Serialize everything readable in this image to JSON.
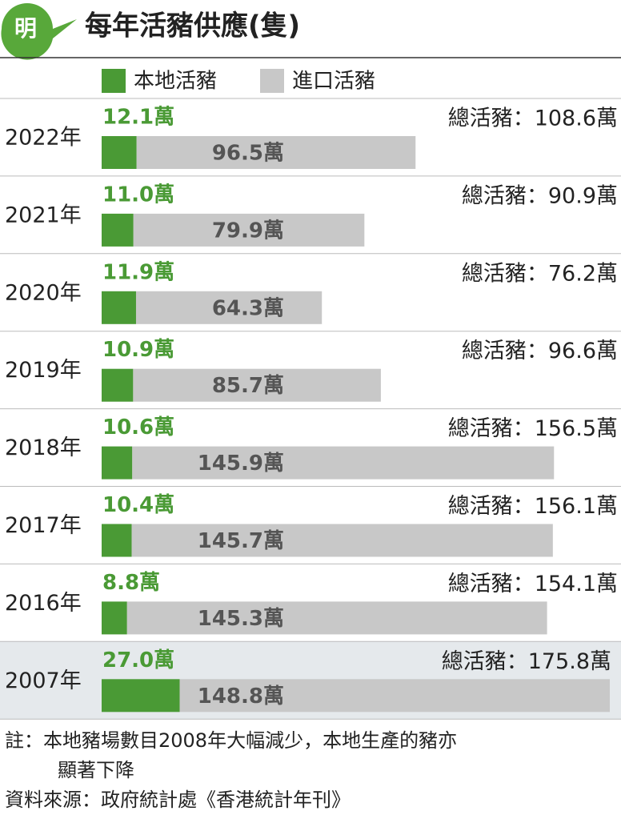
{
  "chart_data": {
    "type": "stacked-bar-horizontal",
    "logo": "明",
    "title": "每年活豬供應(隻)",
    "categories": [
      "2022年",
      "2021年",
      "2020年",
      "2019年",
      "2018年",
      "2017年",
      "2016年",
      "2007年"
    ],
    "series": [
      {
        "name": "本地活豬",
        "color": "#4a9a35",
        "values": [
          12.1,
          11.0,
          11.9,
          10.9,
          10.6,
          10.4,
          8.8,
          27.0
        ],
        "value_labels": [
          "12.1萬",
          "11.0萬",
          "11.9萬",
          "10.9萬",
          "10.6萬",
          "10.4萬",
          "8.8萬",
          "27.0萬"
        ]
      },
      {
        "name": "進口活豬",
        "color": "#c8c8c8",
        "values": [
          96.5,
          79.9,
          64.3,
          85.7,
          145.9,
          145.7,
          145.3,
          148.8
        ],
        "value_labels": [
          "96.5萬",
          "79.9萬",
          "64.3萬",
          "85.7萬",
          "145.9萬",
          "145.7萬",
          "145.3萬",
          "148.8萬"
        ]
      }
    ],
    "total_labels": [
      "總活豬：108.6萬",
      "總活豬：90.9萬",
      "總活豬：76.2萬",
      "總活豬：96.6萬",
      "總活豬：156.5萬",
      "總活豬：156.1萬",
      "總活豬：154.1萬",
      "總活豬：175.8萬"
    ],
    "note_lines": [
      "註：本地豬場數目2008年大幅減少，本地生產的豬亦",
      "顯著下降"
    ],
    "source": "資料來源：政府統計處《香港統計年刊》"
  }
}
